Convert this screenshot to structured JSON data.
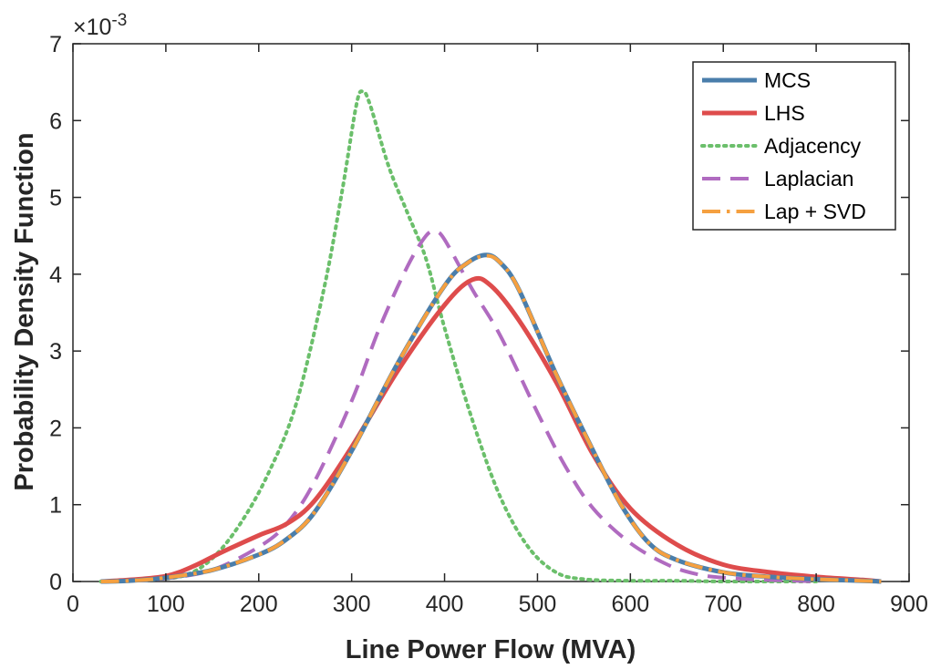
{
  "chart_data": {
    "type": "line",
    "xlabel": "Line Power Flow (MVA)",
    "ylabel": "Probability Density Function",
    "y_exponent_label": "×10",
    "y_exponent_power": "-3",
    "xlim": [
      0,
      900
    ],
    "ylim": [
      0,
      7
    ],
    "x_ticks": [
      "0",
      "100",
      "200",
      "300",
      "400",
      "500",
      "600",
      "700",
      "800",
      "900"
    ],
    "y_ticks": [
      "0",
      "1",
      "2",
      "3",
      "4",
      "5",
      "6",
      "7"
    ],
    "grid": false,
    "legend_position": "top-right",
    "series": [
      {
        "name": "MCS",
        "color": "#4a7eab",
        "style": "solid",
        "x": [
          30,
          60,
          100,
          150,
          200,
          230,
          260,
          300,
          350,
          400,
          425,
          445,
          460,
          480,
          520,
          560,
          590,
          620,
          650,
          700,
          750,
          800,
          850,
          870
        ],
        "y": [
          0.0,
          0.01,
          0.05,
          0.15,
          0.35,
          0.55,
          0.9,
          1.7,
          2.85,
          3.85,
          4.15,
          4.25,
          4.15,
          3.8,
          2.7,
          1.7,
          1.0,
          0.5,
          0.28,
          0.12,
          0.06,
          0.03,
          0.01,
          0.0
        ]
      },
      {
        "name": "LHS",
        "color": "#de4c4c",
        "style": "solid",
        "x": [
          30,
          60,
          100,
          130,
          160,
          200,
          230,
          260,
          300,
          350,
          400,
          430,
          450,
          480,
          520,
          560,
          600,
          650,
          700,
          750,
          800,
          850,
          870
        ],
        "y": [
          0.0,
          0.02,
          0.07,
          0.2,
          0.38,
          0.6,
          0.75,
          1.05,
          1.75,
          2.75,
          3.6,
          3.93,
          3.85,
          3.4,
          2.6,
          1.65,
          0.95,
          0.48,
          0.22,
          0.12,
          0.06,
          0.02,
          0.0
        ]
      },
      {
        "name": "Adjacency",
        "color": "#6bbf6b",
        "style": "dotted",
        "x": [
          30,
          80,
          120,
          150,
          180,
          210,
          240,
          270,
          290,
          305,
          312,
          320,
          340,
          360,
          380,
          400,
          430,
          460,
          490,
          520,
          550,
          600,
          650,
          700,
          750,
          800
        ],
        "y": [
          0.0,
          0.02,
          0.08,
          0.3,
          0.75,
          1.4,
          2.3,
          3.8,
          5.1,
          6.2,
          6.38,
          6.2,
          5.4,
          4.8,
          4.2,
          3.3,
          2.1,
          1.1,
          0.45,
          0.12,
          0.03,
          0.01,
          0.01,
          0.0,
          0.0,
          0.0
        ]
      },
      {
        "name": "Laplacian",
        "color": "#b06bc0",
        "style": "dashed",
        "x": [
          30,
          60,
          100,
          150,
          200,
          230,
          260,
          300,
          330,
          360,
          380,
          390,
          400,
          430,
          460,
          500,
          530,
          560,
          600,
          640,
          670,
          700,
          750,
          800
        ],
        "y": [
          0.0,
          0.01,
          0.04,
          0.15,
          0.45,
          0.75,
          1.3,
          2.35,
          3.3,
          4.1,
          4.5,
          4.55,
          4.45,
          3.8,
          3.2,
          2.2,
          1.5,
          0.95,
          0.5,
          0.22,
          0.1,
          0.05,
          0.02,
          0.0
        ]
      },
      {
        "name": "Lap + SVD",
        "color": "#f5a040",
        "style": "dashdot",
        "x": [
          30,
          60,
          100,
          150,
          200,
          230,
          260,
          300,
          350,
          400,
          425,
          445,
          460,
          480,
          520,
          560,
          590,
          620,
          650,
          700,
          750,
          800,
          850,
          870
        ],
        "y": [
          0.0,
          0.01,
          0.05,
          0.15,
          0.35,
          0.55,
          0.9,
          1.7,
          2.85,
          3.85,
          4.15,
          4.24,
          4.15,
          3.8,
          2.7,
          1.7,
          1.0,
          0.5,
          0.28,
          0.12,
          0.06,
          0.03,
          0.01,
          0.0
        ]
      }
    ]
  }
}
